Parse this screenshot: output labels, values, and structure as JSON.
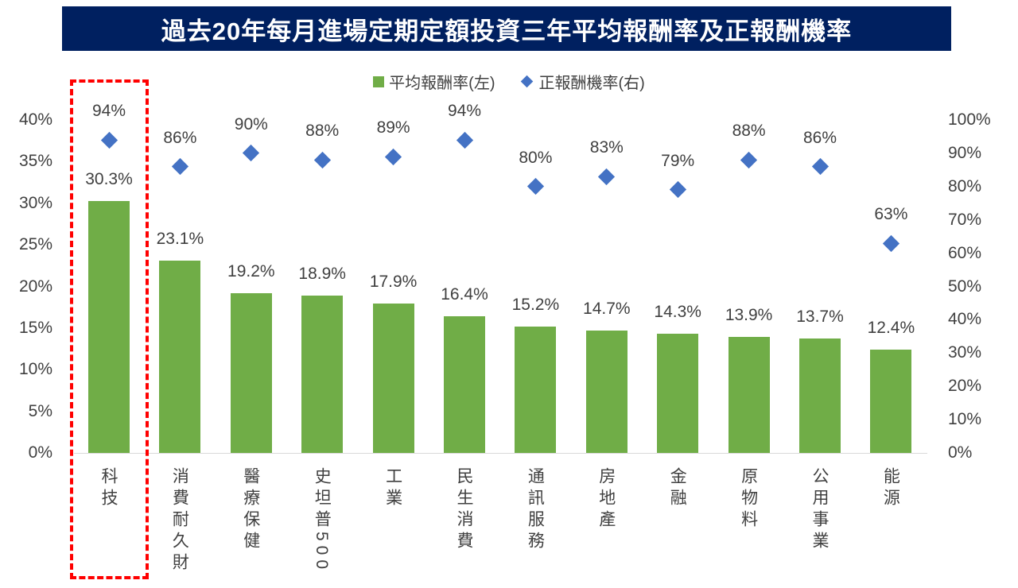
{
  "title": "過去20年每月進場定期定額投資三年平均報酬率及正報酬機率",
  "legend": {
    "bar": "平均報酬率(左)",
    "diamond": "正報酬機率(右)"
  },
  "colors": {
    "bar": "#70ad47",
    "diamond": "#4472c4",
    "title_bg": "#002060",
    "highlight": "#ff0000"
  },
  "chart_data": {
    "type": "bar+scatter",
    "title": "過去20年每月進場定期定額投資三年平均報酬率及正報酬機率",
    "categories": [
      "科技",
      "消費耐久財",
      "醫療保健",
      "史坦普500",
      "工業",
      "民生消費",
      "通訊服務",
      "房地產",
      "金融",
      "原物料",
      "公用事業",
      "能源"
    ],
    "series": [
      {
        "name": "平均報酬率(左)",
        "axis": "left",
        "type": "bar",
        "values": [
          30.3,
          23.1,
          19.2,
          18.9,
          17.9,
          16.4,
          15.2,
          14.7,
          14.3,
          13.9,
          13.7,
          12.4
        ],
        "labels": [
          "30.3%",
          "23.1%",
          "19.2%",
          "18.9%",
          "17.9%",
          "16.4%",
          "15.2%",
          "14.7%",
          "14.3%",
          "13.9%",
          "13.7%",
          "12.4%"
        ]
      },
      {
        "name": "正報酬機率(右)",
        "axis": "right",
        "type": "scatter",
        "values": [
          94,
          86,
          90,
          88,
          89,
          94,
          80,
          83,
          79,
          88,
          86,
          63
        ],
        "labels": [
          "94%",
          "86%",
          "90%",
          "88%",
          "89%",
          "94%",
          "80%",
          "83%",
          "79%",
          "88%",
          "86%",
          "63%"
        ]
      }
    ],
    "left_axis": {
      "ylim": [
        0,
        40
      ],
      "ticks": [
        "0%",
        "5%",
        "10%",
        "15%",
        "20%",
        "25%",
        "30%",
        "35%",
        "40%"
      ]
    },
    "right_axis": {
      "ylim": [
        0,
        100
      ],
      "ticks": [
        "0%",
        "10%",
        "20%",
        "30%",
        "40%",
        "50%",
        "60%",
        "70%",
        "80%",
        "90%",
        "100%"
      ]
    },
    "legend_position": "top-center",
    "highlighted_category": "科技"
  }
}
